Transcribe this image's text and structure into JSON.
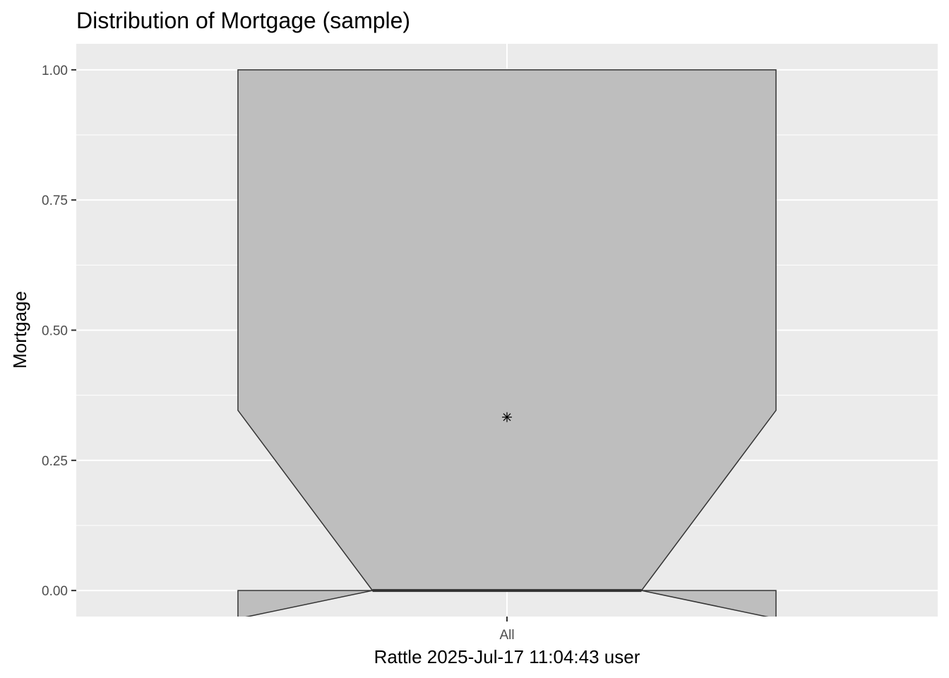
{
  "chart_data": {
    "type": "boxplot",
    "title": "Distribution of Mortgage (sample)",
    "xlabel": "Rattle 2025-Jul-17 11:04:43 user",
    "ylabel": "Mortgage",
    "categories": [
      "All"
    ],
    "y_ticks": [
      "0.00",
      "0.25",
      "0.50",
      "0.75",
      "1.00"
    ],
    "ylim": [
      -0.05,
      1.05
    ],
    "grid": true,
    "notched": true,
    "boxes": [
      {
        "category": "All",
        "q1": 0.0,
        "median": 0.0,
        "q3": 1.0,
        "notch_low": -0.054,
        "notch_high": 0.346,
        "mean": 0.333
      }
    ],
    "colors": {
      "panel_background": "#ebebeb",
      "grid": "#ffffff",
      "box_fill": "#bebebe",
      "box_outline": "#333333",
      "mean_marker": "#000000"
    }
  }
}
